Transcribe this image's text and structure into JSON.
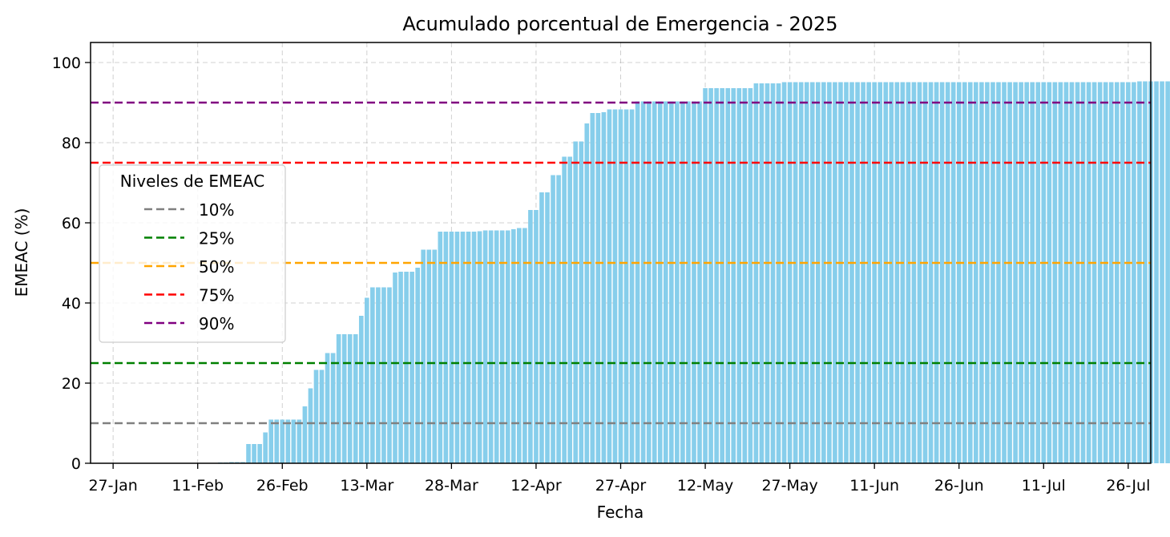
{
  "chart_data": {
    "type": "bar",
    "title": "Acumulado porcentual de Emergencia - 2025",
    "xlabel": "Fecha",
    "ylabel": "EMEAC (%)",
    "ylim": [
      0,
      105
    ],
    "yticks": [
      0,
      20,
      40,
      60,
      80,
      100
    ],
    "xlim": [
      "2025-01-23",
      "2025-07-30"
    ],
    "xticks": [
      {
        "date": "2025-01-27",
        "label": "27-Jan"
      },
      {
        "date": "2025-02-11",
        "label": "11-Feb"
      },
      {
        "date": "2025-02-26",
        "label": "26-Feb"
      },
      {
        "date": "2025-03-13",
        "label": "13-Mar"
      },
      {
        "date": "2025-03-28",
        "label": "28-Mar"
      },
      {
        "date": "2025-04-12",
        "label": "12-Apr"
      },
      {
        "date": "2025-04-27",
        "label": "27-Apr"
      },
      {
        "date": "2025-05-12",
        "label": "12-May"
      },
      {
        "date": "2025-05-27",
        "label": "27-May"
      },
      {
        "date": "2025-06-11",
        "label": "11-Jun"
      },
      {
        "date": "2025-06-26",
        "label": "26-Jun"
      },
      {
        "date": "2025-07-11",
        "label": "11-Jul"
      },
      {
        "date": "2025-07-26",
        "label": "26-Jul"
      }
    ],
    "bar_color": "#87ceeb",
    "grid": true,
    "start_date": "2025-01-27",
    "values": [
      0,
      0,
      0,
      0,
      0,
      0,
      0,
      0,
      0,
      0,
      0,
      0,
      0,
      0,
      0,
      0,
      0,
      0,
      0,
      0.2,
      0.2,
      0.3,
      0.3,
      0.3,
      4.8,
      4.8,
      4.8,
      7.7,
      10.9,
      10.9,
      10.9,
      10.9,
      10.9,
      10.9,
      14.2,
      18.7,
      23.3,
      23.3,
      27.5,
      27.5,
      32.2,
      32.2,
      32.2,
      32.2,
      36.8,
      41.3,
      43.9,
      43.9,
      43.9,
      43.9,
      47.6,
      47.8,
      47.8,
      47.8,
      48.8,
      53.3,
      53.3,
      53.3,
      57.8,
      57.8,
      57.8,
      57.8,
      57.8,
      57.8,
      57.8,
      57.9,
      58.1,
      58.1,
      58.1,
      58.1,
      58.1,
      58.4,
      58.7,
      58.7,
      63.2,
      63.2,
      67.6,
      67.6,
      71.9,
      71.9,
      76.5,
      76.5,
      80.3,
      80.3,
      84.8,
      87.4,
      87.4,
      87.6,
      88.3,
      88.3,
      88.3,
      88.3,
      88.3,
      90.3,
      90.3,
      90.3,
      90.3,
      90.3,
      90.3,
      90.3,
      90.3,
      90.3,
      90.3,
      90.3,
      90.3,
      93.6,
      93.6,
      93.6,
      93.6,
      93.6,
      93.6,
      93.6,
      93.6,
      93.6,
      94.8,
      94.8,
      94.8,
      94.8,
      94.8,
      95.1,
      95.1,
      95.1,
      95.1,
      95.1,
      95.1,
      95.1,
      95.1,
      95.1,
      95.1,
      95.1,
      95.1,
      95.1,
      95.1,
      95.1,
      95.1,
      95.1,
      95.1,
      95.1,
      95.1,
      95.1,
      95.1,
      95.1,
      95.1,
      95.1,
      95.1,
      95.1,
      95.1,
      95.1,
      95.1,
      95.1,
      95.1,
      95.1,
      95.1,
      95.1,
      95.1,
      95.1,
      95.1,
      95.1,
      95.1,
      95.1,
      95.1,
      95.1,
      95.1,
      95.1,
      95.1,
      95.1,
      95.1,
      95.1,
      95.1,
      95.1,
      95.1,
      95.1,
      95.1,
      95.1,
      95.1,
      95.1,
      95.1,
      95.1,
      95.1,
      95.1,
      95.1,
      95.1,
      95.3,
      95.3,
      95.3,
      95.3,
      95.3,
      95.3,
      95.3,
      95.3,
      95.3,
      95.3,
      95.3,
      95.3,
      95.3,
      95.3,
      95.3,
      95.3,
      95.5,
      95.5,
      95.5,
      95.5,
      95.5,
      95.5,
      95.5,
      99.9,
      99.9,
      99.9,
      99.9
    ],
    "hlines": [
      {
        "name": "10%",
        "value": 10,
        "color": "#808080"
      },
      {
        "name": "25%",
        "value": 25,
        "color": "#008000"
      },
      {
        "name": "50%",
        "value": 50,
        "color": "#ffa500"
      },
      {
        "name": "75%",
        "value": 75,
        "color": "#ff0000"
      },
      {
        "name": "90%",
        "value": 90,
        "color": "#800080"
      }
    ],
    "legend": {
      "title": "Niveles de EMEAC",
      "placement": "center-left"
    }
  }
}
